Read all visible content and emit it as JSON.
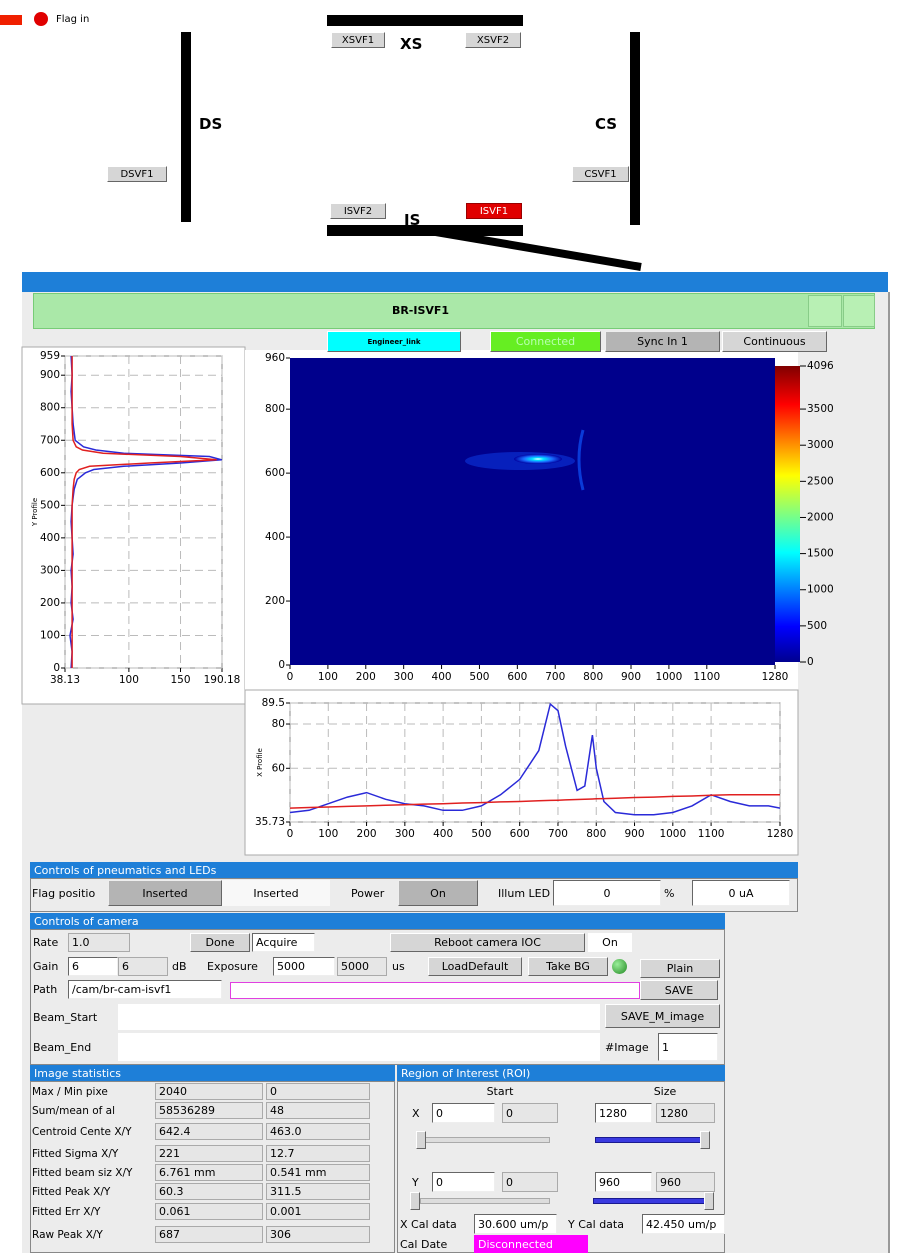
{
  "schematic": {
    "flag_label": "Flag in",
    "xs": "XS",
    "ds": "DS",
    "cs": "CS",
    "is": "IS",
    "buttons": {
      "xsvf1": "XSVF1",
      "xsvf2": "XSVF2",
      "dsvf1": "DSVF1",
      "csvf1": "CSVF1",
      "isvf2": "ISVF2",
      "isvf1": "ISVF1"
    }
  },
  "window": {
    "title": "BR-ISVF1",
    "engineer_link": "Engineer_link",
    "connection": "Connected",
    "sync": "Sync In 1",
    "mode": "Continuous"
  },
  "chart_data": [
    {
      "type": "line",
      "y_label": "Y Profile",
      "xlim": [
        38.13,
        190.18
      ],
      "xticks": [
        38.13,
        100,
        150,
        190.18
      ],
      "ylim": [
        0,
        959
      ],
      "yticks": [
        0,
        100,
        200,
        300,
        400,
        500,
        600,
        700,
        800,
        900,
        959
      ],
      "grid": true,
      "y": [
        0,
        50,
        100,
        150,
        200,
        250,
        300,
        350,
        400,
        450,
        500,
        550,
        580,
        600,
        610,
        620,
        630,
        640,
        650,
        660,
        670,
        680,
        700,
        750,
        800,
        850,
        900,
        959
      ],
      "series": [
        {
          "color": "#2a2ad8",
          "values": [
            44,
            45,
            43,
            46,
            44,
            45,
            44,
            46,
            45,
            44,
            45,
            47,
            50,
            58,
            66,
            95,
            150,
            190,
            178,
            95,
            68,
            56,
            48,
            46,
            45,
            44,
            45,
            44
          ]
        },
        {
          "color": "#e02020",
          "values": [
            45,
            45,
            45,
            45,
            45,
            45,
            45,
            45,
            45,
            45,
            45,
            46,
            47,
            49,
            52,
            62,
            120,
            185,
            150,
            75,
            55,
            49,
            46,
            45,
            45,
            45,
            45,
            45
          ]
        }
      ]
    },
    {
      "type": "heatmap",
      "xlim": [
        0,
        1280
      ],
      "xticks": [
        0,
        100,
        200,
        300,
        400,
        500,
        600,
        700,
        800,
        900,
        1000,
        1100,
        1280
      ],
      "ylim": [
        0,
        960
      ],
      "yticks": [
        0,
        200,
        400,
        600,
        800,
        960
      ],
      "clim": [
        0,
        4096
      ],
      "cticks": [
        0,
        500,
        1000,
        1500,
        2000,
        2500,
        3000,
        3500,
        4096
      ]
    },
    {
      "type": "line",
      "y_label": "X Profile",
      "xlim": [
        0,
        1280
      ],
      "xticks": [
        0,
        100,
        200,
        300,
        400,
        500,
        600,
        700,
        800,
        900,
        1000,
        1100,
        1280
      ],
      "ylim": [
        35.73,
        89.5
      ],
      "yticks": [
        35.73,
        60,
        80,
        89.5
      ],
      "grid": true,
      "x": [
        0,
        50,
        100,
        150,
        200,
        250,
        300,
        350,
        400,
        450,
        500,
        550,
        600,
        650,
        680,
        700,
        720,
        750,
        770,
        790,
        800,
        820,
        850,
        900,
        950,
        1000,
        1050,
        1100,
        1150,
        1200,
        1250,
        1280
      ],
      "series": [
        {
          "color": "#2a2ad8",
          "values": [
            40,
            41,
            44,
            47,
            49,
            46,
            44,
            43,
            41,
            41,
            43,
            48,
            55,
            68,
            89,
            86,
            70,
            50,
            52,
            75,
            60,
            45,
            40,
            39,
            39,
            40,
            43,
            48,
            45,
            43,
            43,
            42
          ]
        },
        {
          "color": "#e02020",
          "values": [
            42,
            42.3,
            42.5,
            42.8,
            43,
            43.3,
            43.5,
            43.8,
            44,
            44.3,
            44.5,
            44.8,
            45,
            45.3,
            45.5,
            45.6,
            45.7,
            45.9,
            46,
            46.1,
            46.2,
            46.3,
            46.5,
            46.8,
            47,
            47.3,
            47.5,
            47.8,
            48,
            48,
            48,
            48
          ]
        }
      ]
    }
  ],
  "pneumatics": {
    "header": "Controls of pneumatics and LEDs",
    "flag_label": "Flag positio",
    "flag_button": "Inserted",
    "flag_state": "Inserted",
    "power_label": "Power",
    "power_button": "On",
    "led_label": "Illum LED",
    "led_value": "0",
    "led_unit": "%",
    "current": "0 uA"
  },
  "camera": {
    "header": "Controls of camera",
    "rate_label": "Rate",
    "rate": "1.0",
    "done": "Done",
    "acquire": "Acquire",
    "reboot": "Reboot camera IOC",
    "ioc_state": "On",
    "gain_label": "Gain",
    "gain_set": "6",
    "gain_read": "6",
    "gain_unit": "dB",
    "exposure_label": "Exposure",
    "exposure_set": "5000",
    "exposure_read": "5000",
    "exposure_unit": "us",
    "load_default": "LoadDefault",
    "take_bg": "Take BG",
    "plain": "Plain",
    "path_label": "Path",
    "path": "/cam/br-cam-isvf1",
    "save": "SAVE",
    "beam_start_label": "Beam_Start",
    "save_m_image": "SAVE_M_image",
    "beam_end_label": "Beam_End",
    "n_image_label": "#Image",
    "n_image": "1"
  },
  "statistics": {
    "header": "Image statistics",
    "rows": [
      {
        "label": "Max / Min pixe",
        "values": [
          "2040",
          "0"
        ]
      },
      {
        "label": "Sum/mean of al",
        "values": [
          "58536289",
          "48"
        ]
      },
      {
        "label": "Centroid Cente X/Y",
        "values": [
          "642.4",
          "463.0"
        ]
      },
      {
        "label": "Fitted Sigma X/Y",
        "values": [
          "221",
          "12.7"
        ]
      },
      {
        "label": "Fitted beam siz X/Y",
        "values": [
          "6.761 mm",
          "0.541 mm"
        ]
      },
      {
        "label": "Fitted Peak X/Y",
        "values": [
          "60.3",
          "311.5"
        ]
      },
      {
        "label": "Fitted Err X/Y",
        "values": [
          "0.061",
          "0.001"
        ]
      },
      {
        "label": "Raw Peak X/Y",
        "values": [
          "687",
          "306"
        ]
      }
    ]
  },
  "roi": {
    "header": "Region of Interest (ROI)",
    "start_label": "Start",
    "size_label": "Size",
    "x_label": "X",
    "x_start_set": "0",
    "x_start_read": "0",
    "x_size_set": "1280",
    "x_size_read": "1280",
    "y_label": "Y",
    "y_start_set": "0",
    "y_start_read": "0",
    "y_size_set": "960",
    "y_size_read": "960",
    "x_cal_label": "X Cal data",
    "x_cal": "30.600 um/p",
    "y_cal_label": "Y Cal data",
    "y_cal": "42.450 um/p",
    "cal_date_label": "Cal Date",
    "cal_date": "Disconnected"
  }
}
